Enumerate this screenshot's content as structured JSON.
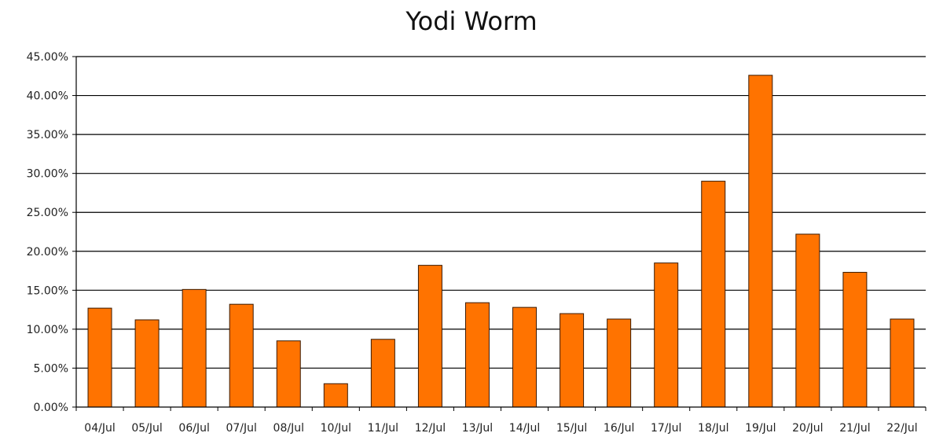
{
  "chart_data": {
    "type": "bar",
    "title": "Yodi Worm",
    "xlabel": "",
    "ylabel": "",
    "categories": [
      "04/Jul",
      "05/Jul",
      "06/Jul",
      "07/Jul",
      "08/Jul",
      "10/Jul",
      "11/Jul",
      "12/Jul",
      "13/Jul",
      "14/Jul",
      "15/Jul",
      "16/Jul",
      "17/Jul",
      "18/Jul",
      "19/Jul",
      "20/Jul",
      "21/Jul",
      "22/Jul"
    ],
    "values": [
      12.7,
      11.2,
      15.1,
      13.2,
      8.5,
      3.0,
      8.7,
      18.2,
      13.4,
      12.8,
      12.0,
      11.3,
      18.5,
      29.0,
      42.6,
      22.2,
      17.3,
      11.3
    ],
    "value_unit": "%",
    "ylim": [
      0,
      45
    ],
    "y_ticks": [
      "0.00%",
      "5.00%",
      "10.00%",
      "15.00%",
      "20.00%",
      "25.00%",
      "30.00%",
      "35.00%",
      "40.00%",
      "45.00%"
    ],
    "grid": "horizontal",
    "legend": "none",
    "colors": {
      "bar_fill": "#ff7300",
      "bar_stroke": "#3a1a00",
      "grid": "#000000",
      "axis": "#000000"
    }
  }
}
